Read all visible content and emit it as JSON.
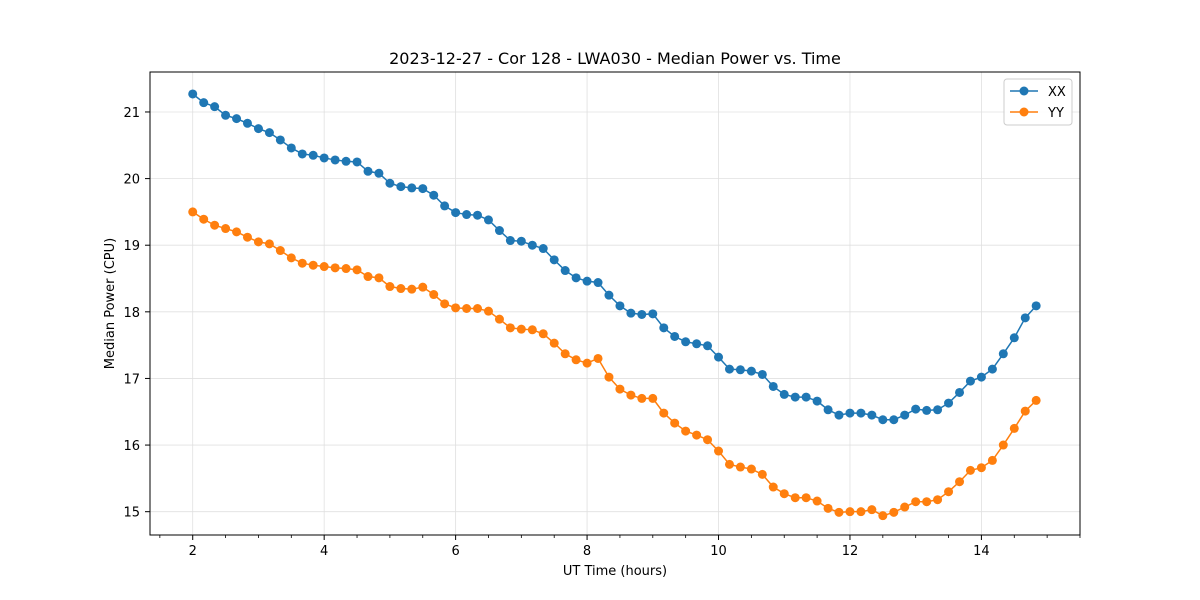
{
  "chart_data": {
    "type": "line",
    "title": "2023-12-27 - Cor 128 - LWA030 - Median Power vs. Time",
    "xlabel": "UT Time (hours)",
    "ylabel": "Median Power (CPU)",
    "xlim": [
      1.35,
      15.5
    ],
    "ylim": [
      14.65,
      21.6
    ],
    "xticks": [
      2,
      4,
      6,
      8,
      10,
      12,
      14
    ],
    "yticks": [
      15,
      16,
      17,
      18,
      19,
      20,
      21
    ],
    "grid": true,
    "legend_position": "top-right",
    "x": [
      2.0,
      2.167,
      2.333,
      2.5,
      2.667,
      2.833,
      3.0,
      3.167,
      3.333,
      3.5,
      3.667,
      3.833,
      4.0,
      4.167,
      4.333,
      4.5,
      4.667,
      4.833,
      5.0,
      5.167,
      5.333,
      5.5,
      5.667,
      5.833,
      6.0,
      6.167,
      6.333,
      6.5,
      6.667,
      6.833,
      7.0,
      7.167,
      7.333,
      7.5,
      7.667,
      7.833,
      8.0,
      8.167,
      8.333,
      8.5,
      8.667,
      8.833,
      9.0,
      9.167,
      9.333,
      9.5,
      9.667,
      9.833,
      10.0,
      10.167,
      10.333,
      10.5,
      10.667,
      10.833,
      11.0,
      11.167,
      11.333,
      11.5,
      11.667,
      11.833,
      12.0,
      12.167,
      12.333,
      12.5,
      12.667,
      12.833,
      13.0,
      13.167,
      13.333,
      13.5,
      13.667,
      13.833,
      14.0,
      14.167,
      14.333,
      14.5,
      14.667,
      14.833
    ],
    "series": [
      {
        "name": "XX",
        "color": "#1f77b4",
        "values": [
          21.27,
          21.14,
          21.08,
          20.95,
          20.9,
          20.83,
          20.75,
          20.69,
          20.58,
          20.46,
          20.37,
          20.35,
          20.31,
          20.28,
          20.26,
          20.25,
          20.11,
          20.08,
          19.93,
          19.88,
          19.86,
          19.85,
          19.75,
          19.59,
          19.49,
          19.46,
          19.45,
          19.38,
          19.22,
          19.07,
          19.06,
          19.0,
          18.95,
          18.78,
          18.62,
          18.51,
          18.46,
          18.44,
          18.25,
          18.09,
          17.98,
          17.96,
          17.97,
          17.76,
          17.63,
          17.55,
          17.52,
          17.49,
          17.32,
          17.14,
          17.13,
          17.11,
          17.06,
          16.88,
          16.76,
          16.72,
          16.72,
          16.66,
          16.53,
          16.45,
          16.48,
          16.48,
          16.45,
          16.38,
          16.38,
          16.45,
          16.54,
          16.52,
          16.53,
          16.63,
          16.79,
          16.96,
          17.02,
          17.14,
          17.37,
          17.61,
          17.91,
          18.09
        ]
      },
      {
        "name": "YY",
        "color": "#ff7f0e",
        "values": [
          19.5,
          19.39,
          19.3,
          19.25,
          19.2,
          19.12,
          19.05,
          19.02,
          18.92,
          18.81,
          18.73,
          18.7,
          18.68,
          18.66,
          18.65,
          18.63,
          18.53,
          18.51,
          18.38,
          18.35,
          18.34,
          18.37,
          18.26,
          18.12,
          18.06,
          18.05,
          18.05,
          18.01,
          17.89,
          17.76,
          17.74,
          17.73,
          17.67,
          17.53,
          17.37,
          17.28,
          17.23,
          17.3,
          17.02,
          16.84,
          16.75,
          16.7,
          16.7,
          16.48,
          16.33,
          16.21,
          16.15,
          16.08,
          15.91,
          15.71,
          15.67,
          15.64,
          15.56,
          15.37,
          15.27,
          15.21,
          15.21,
          15.16,
          15.05,
          14.99,
          15.0,
          15.0,
          15.03,
          14.94,
          14.99,
          15.07,
          15.15,
          15.15,
          15.18,
          15.3,
          15.45,
          15.62,
          15.66,
          15.77,
          16.0,
          16.25,
          16.51,
          16.67
        ]
      }
    ]
  }
}
